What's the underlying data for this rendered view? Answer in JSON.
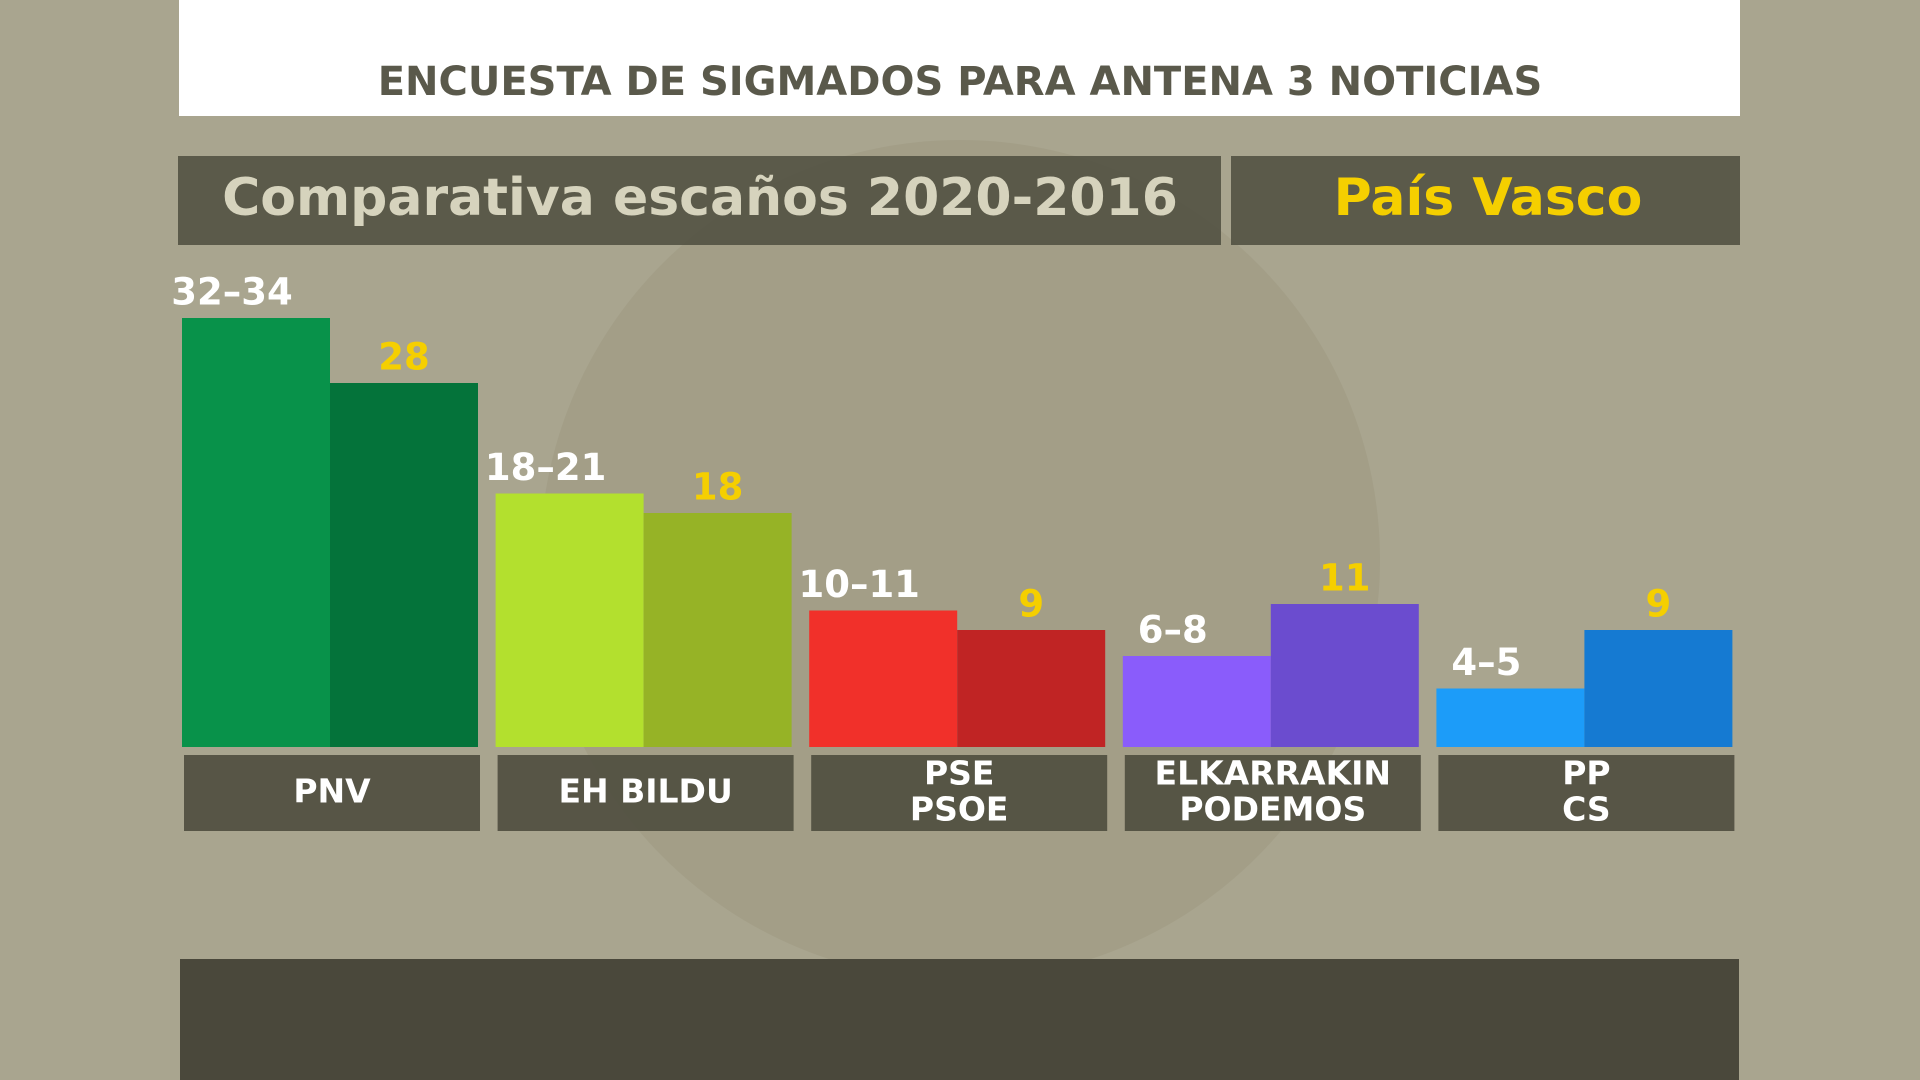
{
  "chart_data": {
    "type": "bar",
    "title": "ENCUESTA DE SIGMADOS PARA ANTENA 3 NOTICIAS",
    "subtitle": "Comparativa escaños 2020-2016",
    "region": "País Vasco",
    "categories": [
      [
        "PNV"
      ],
      [
        "EH BILDU"
      ],
      [
        "PSE",
        "PSOE"
      ],
      [
        "ELKARRAKIN",
        "PODEMOS"
      ],
      [
        "PP",
        "CS"
      ]
    ],
    "series": [
      {
        "colors": [
          "#08924a",
          "#b3e02e",
          "#f1302a",
          "#8a5cfb",
          "#1c9cf9"
        ],
        "values": [
          33,
          19.5,
          10.5,
          7,
          4.5
        ],
        "value_labels": [
          "32–34",
          "18–21",
          "10–11",
          "6–8",
          "4–5"
        ]
      },
      {
        "colors": [
          "#04733a",
          "#96b326",
          "#c02424",
          "#6b4ccf",
          "#157ad2"
        ],
        "values": [
          28,
          18,
          9,
          11,
          9
        ]
      }
    ]
  }
}
